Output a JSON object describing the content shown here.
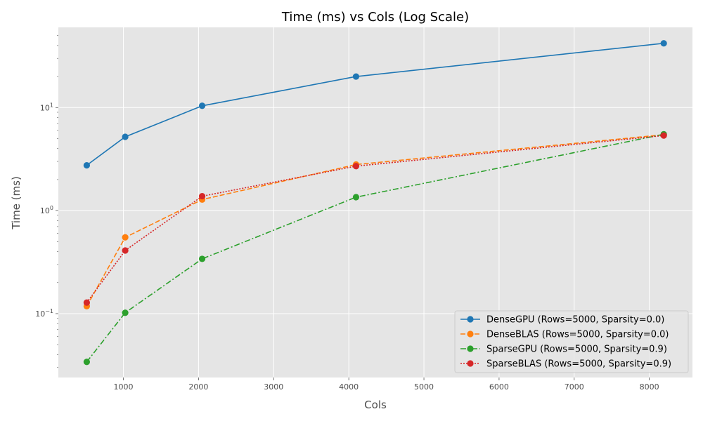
{
  "chart_data": {
    "type": "line",
    "title": "Time (ms) vs Cols (Log Scale)",
    "xlabel": "Cols",
    "ylabel": "Time (ms)",
    "xlim": [
      134,
      8574
    ],
    "ylim": [
      0.024,
      60
    ],
    "yscale": "log",
    "grid": true,
    "legend_position": "lower-right",
    "x_ticks": [
      1000,
      2000,
      3000,
      4000,
      5000,
      6000,
      7000,
      8000
    ],
    "y_ticks": [
      {
        "value": 0.1,
        "base": "10",
        "exp": "−1"
      },
      {
        "value": 1,
        "base": "10",
        "exp": "0"
      },
      {
        "value": 10,
        "base": "10",
        "exp": "1"
      }
    ],
    "x": [
      512,
      1024,
      2048,
      4096,
      8192
    ],
    "series": [
      {
        "name": "DenseGPU (Rows=5000, Sparsity=0.0)",
        "color": "#1f77b4",
        "dash": "",
        "values": [
          2.75,
          5.2,
          10.4,
          20.0,
          42.0
        ]
      },
      {
        "name": "DenseBLAS (Rows=5000, Sparsity=0.0)",
        "color": "#ff7f0e",
        "dash": "7,3",
        "values": [
          0.118,
          0.55,
          1.28,
          2.8,
          5.45
        ]
      },
      {
        "name": "SparseGPU (Rows=5000, Sparsity=0.9)",
        "color": "#2ca02c",
        "dash": "8,3,2,3",
        "values": [
          0.034,
          0.102,
          0.34,
          1.35,
          5.5
        ]
      },
      {
        "name": "SparseBLAS (Rows=5000, Sparsity=0.9)",
        "color": "#d62728",
        "dash": "2,2",
        "values": [
          0.128,
          0.41,
          1.38,
          2.7,
          5.35
        ]
      }
    ]
  }
}
